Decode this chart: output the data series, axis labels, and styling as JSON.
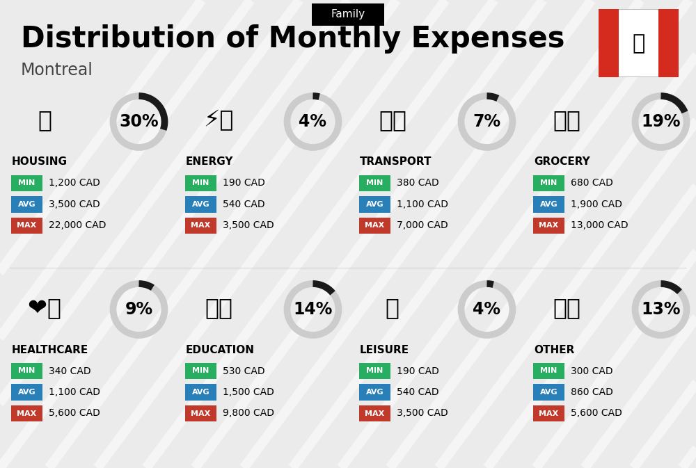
{
  "title": "Distribution of Monthly Expenses",
  "subtitle": "Montreal",
  "family_label": "Family",
  "bg_color": "#ebebeb",
  "categories": [
    {
      "name": "HOUSING",
      "pct": 30,
      "min_val": "1,200 CAD",
      "avg_val": "3,500 CAD",
      "max_val": "22,000 CAD",
      "row": 0,
      "col": 0,
      "emoji_key": "housing"
    },
    {
      "name": "ENERGY",
      "pct": 4,
      "min_val": "190 CAD",
      "avg_val": "540 CAD",
      "max_val": "3,500 CAD",
      "row": 0,
      "col": 1,
      "emoji_key": "energy"
    },
    {
      "name": "TRANSPORT",
      "pct": 7,
      "min_val": "380 CAD",
      "avg_val": "1,100 CAD",
      "max_val": "7,000 CAD",
      "row": 0,
      "col": 2,
      "emoji_key": "transport"
    },
    {
      "name": "GROCERY",
      "pct": 19,
      "min_val": "680 CAD",
      "avg_val": "1,900 CAD",
      "max_val": "13,000 CAD",
      "row": 0,
      "col": 3,
      "emoji_key": "grocery"
    },
    {
      "name": "HEALTHCARE",
      "pct": 9,
      "min_val": "340 CAD",
      "avg_val": "1,100 CAD",
      "max_val": "5,600 CAD",
      "row": 1,
      "col": 0,
      "emoji_key": "healthcare"
    },
    {
      "name": "EDUCATION",
      "pct": 14,
      "min_val": "530 CAD",
      "avg_val": "1,500 CAD",
      "max_val": "9,800 CAD",
      "row": 1,
      "col": 1,
      "emoji_key": "education"
    },
    {
      "name": "LEISURE",
      "pct": 4,
      "min_val": "190 CAD",
      "avg_val": "540 CAD",
      "max_val": "3,500 CAD",
      "row": 1,
      "col": 2,
      "emoji_key": "leisure"
    },
    {
      "name": "OTHER",
      "pct": 13,
      "min_val": "300 CAD",
      "avg_val": "860 CAD",
      "max_val": "5,600 CAD",
      "row": 1,
      "col": 3,
      "emoji_key": "other"
    }
  ],
  "min_color": "#27ae60",
  "avg_color": "#2980b9",
  "max_color": "#c0392b",
  "donut_bg": "#cccccc",
  "donut_fg": "#1a1a1a",
  "title_fontsize": 30,
  "subtitle_fontsize": 17,
  "name_fontsize": 11,
  "value_fontsize": 10,
  "pct_fontsize": 17,
  "badge_fontsize": 8
}
